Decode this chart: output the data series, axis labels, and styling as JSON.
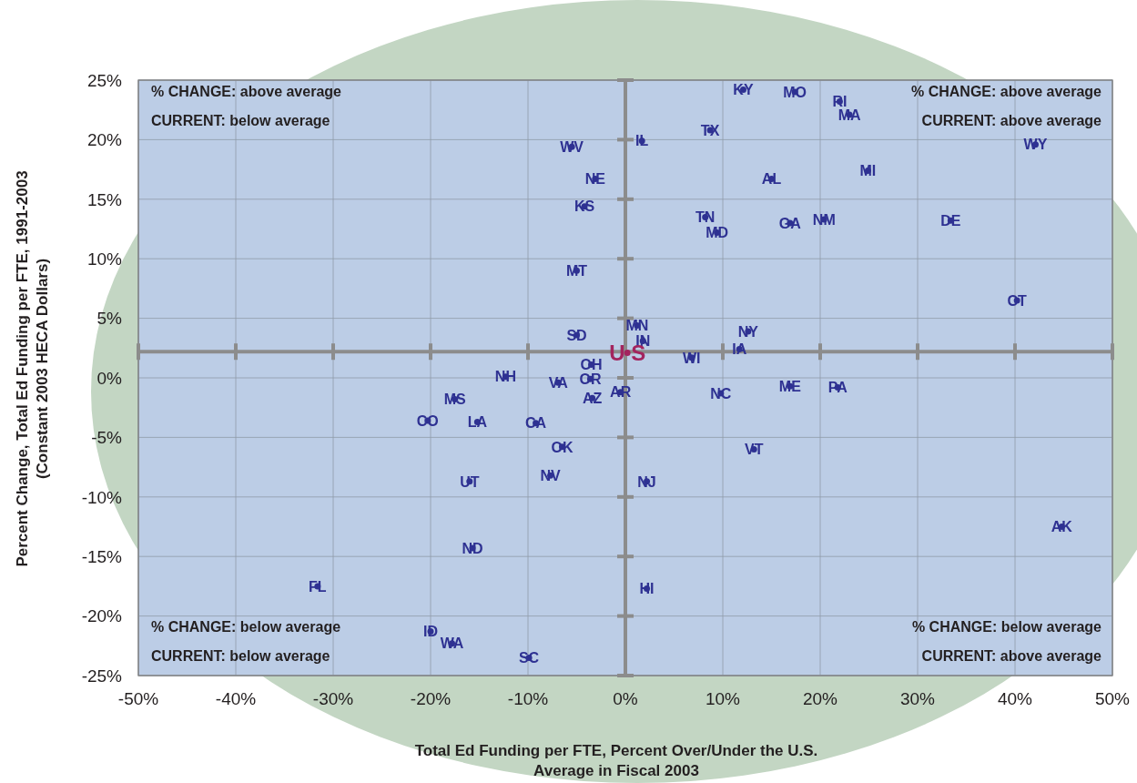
{
  "chart_data": {
    "type": "scatter",
    "xlabel": "Total Ed Funding per FTE, Percent Over/Under the U.S.\nAverage in Fiscal 2003",
    "ylabel": "Percent Change, Total Ed Funding per FTE, 1991-2003\n(Constant 2003 HECA Dollars)",
    "xlim": [
      -50,
      50
    ],
    "ylim": [
      -25,
      25
    ],
    "xticks": [
      {
        "value": -50,
        "label": "-50%"
      },
      {
        "value": -40,
        "label": "-40%"
      },
      {
        "value": -30,
        "label": "-30%"
      },
      {
        "value": -20,
        "label": "-20%"
      },
      {
        "value": -10,
        "label": "-10%"
      },
      {
        "value": 0,
        "label": "0%"
      },
      {
        "value": 10,
        "label": "10%"
      },
      {
        "value": 20,
        "label": "20%"
      },
      {
        "value": 30,
        "label": "30%"
      },
      {
        "value": 40,
        "label": "40%"
      },
      {
        "value": 50,
        "label": "50%"
      }
    ],
    "yticks": [
      {
        "value": -25,
        "label": "-25%"
      },
      {
        "value": -20,
        "label": "-20%"
      },
      {
        "value": -15,
        "label": "-15%"
      },
      {
        "value": -10,
        "label": "-10%"
      },
      {
        "value": -5,
        "label": "-5%"
      },
      {
        "value": 0,
        "label": "0%"
      },
      {
        "value": 5,
        "label": "5%"
      },
      {
        "value": 10,
        "label": "10%"
      },
      {
        "value": 15,
        "label": "15%"
      },
      {
        "value": 20,
        "label": "20%"
      },
      {
        "value": 25,
        "label": "25%"
      }
    ],
    "grid": true,
    "marker": "circle",
    "ref_lines": [
      {
        "axis": "x",
        "value": 0,
        "color": "#8c8c8c"
      },
      {
        "axis": "y",
        "value": 2.2,
        "color": "#8c8c8c"
      }
    ],
    "annotations": [
      "% CHANGE: above average",
      "CURRENT: below average",
      "% CHANGE: above average",
      "CURRENT: above average",
      "% CHANGE: below average",
      "CURRENT: below average",
      "% CHANGE: below average",
      "CURRENT: above average"
    ],
    "series": [
      {
        "color": "#2e3192",
        "x": [
          12.1,
          17.4,
          22.0,
          23.0,
          8.7,
          1.7,
          -5.5,
          42.1,
          24.9,
          15.0,
          -3.1,
          -4.2,
          8.2,
          9.4,
          16.9,
          20.4,
          33.4,
          -5.0,
          40.2,
          1.2,
          12.6,
          -5.0,
          1.8,
          11.7,
          6.8,
          -3.5,
          -12.3,
          -3.6,
          -6.9,
          16.9,
          21.8,
          -17.5,
          -0.5,
          9.8,
          -3.4,
          -20.3,
          -15.2,
          -9.2,
          -6.5,
          13.2,
          -7.7,
          -16.0,
          2.2,
          44.8,
          -15.7,
          -31.6,
          2.2,
          -20.0,
          -17.8,
          -9.9
        ],
        "values": [
          24.2,
          24.0,
          23.2,
          22.1,
          20.8,
          19.9,
          19.4,
          19.6,
          17.4,
          16.7,
          16.7,
          14.4,
          13.5,
          12.2,
          13.0,
          13.3,
          13.2,
          9.0,
          6.5,
          4.4,
          3.9,
          3.6,
          3.1,
          2.4,
          1.7,
          1.1,
          0.1,
          -0.1,
          -0.4,
          -0.7,
          -0.8,
          -1.8,
          -1.2,
          -1.3,
          -1.7,
          -3.6,
          -3.7,
          -3.8,
          -5.8,
          -6.0,
          -8.2,
          -8.7,
          -8.7,
          -12.5,
          -14.3,
          -17.5,
          -17.7,
          -21.3,
          -22.3,
          -23.5
        ],
        "value_labels": [
          "KY",
          "MO",
          "RI",
          "MA",
          "TX",
          "IL",
          "WV",
          "WY",
          "MI",
          "AL",
          "NE",
          "KS",
          "TN",
          "MD",
          "GA",
          "NM",
          "DE",
          "MT",
          "CT",
          "MN",
          "NY",
          "SD",
          "IN",
          "IA",
          "WI",
          "OH",
          "NH",
          "OR",
          "VA",
          "ME",
          "PA",
          "MS",
          "AR",
          "NC",
          "AZ",
          "CO",
          "LA",
          "CA",
          "OK",
          "VT",
          "NV",
          "UT",
          "NJ",
          "AK",
          "ND",
          "FL",
          "HI",
          "ID",
          "WA",
          "SC"
        ]
      },
      {
        "color": "#a3245e",
        "x": [
          0.2
        ],
        "values": [
          2.1
        ],
        "value_labels": [
          "U S"
        ]
      }
    ]
  }
}
